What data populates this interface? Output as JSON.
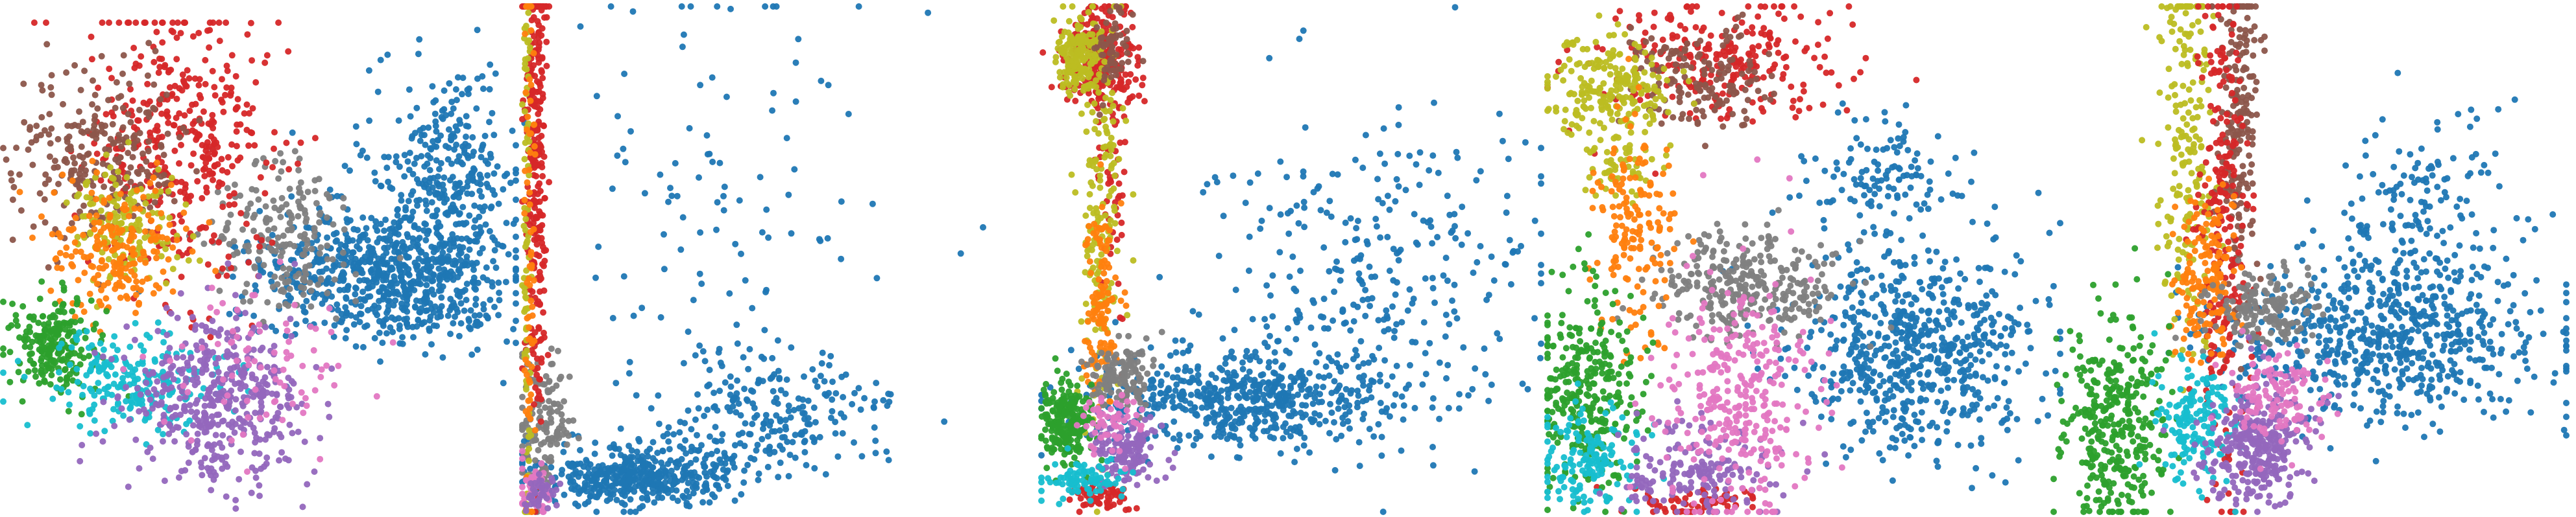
{
  "figure": {
    "background": "#ffffff",
    "axes_visible": false,
    "point_opacity": 0.95
  },
  "palette": {
    "blue": "#1f77b4",
    "orange": "#ff7f0e",
    "green": "#2ca02c",
    "red": "#d62728",
    "purple": "#9467bd",
    "brown": "#8c564b",
    "pink": "#e377c2",
    "gray": "#7f7f7f",
    "olive": "#bcbd22",
    "cyan": "#17becf"
  },
  "chart_data": [
    {
      "type": "scatter",
      "title": "",
      "xlim": [
        0,
        1
      ],
      "ylim": [
        0,
        1
      ],
      "grid": false,
      "legend": "none",
      "series": [
        {
          "color": "blue",
          "clusters": [
            {
              "cx": 0.75,
              "cy": 0.52,
              "sx": 0.12,
              "sy": 0.07,
              "n": 700
            },
            {
              "cx": 0.86,
              "cy": 0.33,
              "sx": 0.07,
              "sy": 0.12,
              "n": 350
            }
          ]
        },
        {
          "color": "gray",
          "clusters": [
            {
              "cx": 0.55,
              "cy": 0.45,
              "sx": 0.07,
              "sy": 0.08,
              "n": 200
            }
          ]
        },
        {
          "color": "red",
          "clusters": [
            {
              "cx": 0.35,
              "cy": 0.25,
              "sx": 0.09,
              "sy": 0.15,
              "n": 400
            }
          ]
        },
        {
          "color": "brown",
          "clusters": [
            {
              "cx": 0.18,
              "cy": 0.28,
              "sx": 0.08,
              "sy": 0.09,
              "n": 250
            }
          ]
        },
        {
          "color": "olive",
          "clusters": [
            {
              "cx": 0.24,
              "cy": 0.42,
              "sx": 0.05,
              "sy": 0.06,
              "n": 150
            }
          ]
        },
        {
          "color": "orange",
          "clusters": [
            {
              "cx": 0.22,
              "cy": 0.47,
              "sx": 0.07,
              "sy": 0.07,
              "n": 200
            }
          ]
        },
        {
          "color": "green",
          "clusters": [
            {
              "cx": 0.1,
              "cy": 0.66,
              "sx": 0.04,
              "sy": 0.05,
              "n": 220
            }
          ]
        },
        {
          "color": "cyan",
          "clusters": [
            {
              "cx": 0.25,
              "cy": 0.74,
              "sx": 0.1,
              "sy": 0.05,
              "n": 220
            }
          ]
        },
        {
          "color": "purple",
          "clusters": [
            {
              "cx": 0.42,
              "cy": 0.77,
              "sx": 0.09,
              "sy": 0.08,
              "n": 450
            }
          ]
        },
        {
          "color": "pink",
          "clusters": [
            {
              "cx": 0.5,
              "cy": 0.7,
              "sx": 0.1,
              "sy": 0.08,
              "n": 80
            }
          ]
        }
      ]
    },
    {
      "type": "scatter",
      "title": "",
      "xlim": [
        0,
        1
      ],
      "ylim": [
        0,
        1
      ],
      "grid": false,
      "legend": "none",
      "series": [
        {
          "color": "blue",
          "clusters": [
            {
              "cx": 0.25,
              "cy": 0.93,
              "sx": 0.1,
              "sy": 0.03,
              "n": 450
            },
            {
              "cx": 0.55,
              "cy": 0.8,
              "sx": 0.12,
              "sy": 0.06,
              "n": 220
            },
            {
              "cx": 0.42,
              "cy": 0.35,
              "sx": 0.18,
              "sy": 0.25,
              "n": 110
            }
          ]
        },
        {
          "color": "gray",
          "clusters": [
            {
              "cx": 0.05,
              "cy": 0.82,
              "sx": 0.03,
              "sy": 0.07,
              "n": 130
            }
          ]
        },
        {
          "color": "red",
          "clusters": [
            {
              "cx": 0.03,
              "cy": 0.3,
              "sx": 0.012,
              "sy": 0.26,
              "n": 300
            }
          ]
        },
        {
          "color": "olive",
          "clusters": [
            {
              "cx": 0.01,
              "cy": 0.45,
              "sx": 0.004,
              "sy": 0.35,
              "n": 90
            }
          ]
        },
        {
          "color": "orange",
          "clusters": [
            {
              "cx": 0.015,
              "cy": 0.52,
              "sx": 0.006,
              "sy": 0.32,
              "n": 70
            }
          ]
        },
        {
          "color": "pink",
          "clusters": [
            {
              "cx": 0.03,
              "cy": 0.95,
              "sx": 0.02,
              "sy": 0.03,
              "n": 50
            }
          ]
        },
        {
          "color": "purple",
          "clusters": [
            {
              "cx": 0.04,
              "cy": 0.96,
              "sx": 0.02,
              "sy": 0.02,
              "n": 40
            }
          ]
        }
      ]
    },
    {
      "type": "scatter",
      "title": "",
      "xlim": [
        0,
        1
      ],
      "ylim": [
        0,
        1
      ],
      "grid": false,
      "legend": "none",
      "series": [
        {
          "color": "blue",
          "clusters": [
            {
              "cx": 0.4,
              "cy": 0.78,
              "sx": 0.14,
              "sy": 0.05,
              "n": 550
            },
            {
              "cx": 0.65,
              "cy": 0.55,
              "sx": 0.18,
              "sy": 0.16,
              "n": 320
            }
          ]
        },
        {
          "color": "red",
          "clusters": [
            {
              "cx": 0.12,
              "cy": 0.1,
              "sx": 0.04,
              "sy": 0.05,
              "n": 250
            },
            {
              "cx": 0.14,
              "cy": 0.3,
              "sx": 0.015,
              "sy": 0.18,
              "n": 60
            },
            {
              "cx": 0.12,
              "cy": 0.97,
              "sx": 0.03,
              "sy": 0.015,
              "n": 60
            }
          ]
        },
        {
          "color": "olive",
          "clusters": [
            {
              "cx": 0.08,
              "cy": 0.1,
              "sx": 0.025,
              "sy": 0.04,
              "n": 180
            },
            {
              "cx": 0.12,
              "cy": 0.4,
              "sx": 0.02,
              "sy": 0.2,
              "n": 160
            }
          ]
        },
        {
          "color": "brown",
          "clusters": [
            {
              "cx": 0.14,
              "cy": 0.08,
              "sx": 0.02,
              "sy": 0.04,
              "n": 60
            }
          ]
        },
        {
          "color": "orange",
          "clusters": [
            {
              "cx": 0.12,
              "cy": 0.6,
              "sx": 0.015,
              "sy": 0.1,
              "n": 120
            }
          ]
        },
        {
          "color": "gray",
          "clusters": [
            {
              "cx": 0.16,
              "cy": 0.73,
              "sx": 0.03,
              "sy": 0.03,
              "n": 140
            }
          ]
        },
        {
          "color": "green",
          "clusters": [
            {
              "cx": 0.05,
              "cy": 0.82,
              "sx": 0.025,
              "sy": 0.04,
              "n": 220
            }
          ]
        },
        {
          "color": "purple",
          "clusters": [
            {
              "cx": 0.17,
              "cy": 0.88,
              "sx": 0.03,
              "sy": 0.03,
              "n": 140
            }
          ]
        },
        {
          "color": "cyan",
          "clusters": [
            {
              "cx": 0.09,
              "cy": 0.94,
              "sx": 0.04,
              "sy": 0.02,
              "n": 90
            }
          ]
        },
        {
          "color": "pink",
          "clusters": [
            {
              "cx": 0.14,
              "cy": 0.82,
              "sx": 0.03,
              "sy": 0.03,
              "n": 60
            }
          ]
        }
      ]
    },
    {
      "type": "scatter",
      "title": "",
      "xlim": [
        0,
        1
      ],
      "ylim": [
        0,
        1
      ],
      "grid": false,
      "legend": "none",
      "series": [
        {
          "color": "blue",
          "clusters": [
            {
              "cx": 0.73,
              "cy": 0.68,
              "sx": 0.12,
              "sy": 0.1,
              "n": 650
            },
            {
              "cx": 0.65,
              "cy": 0.34,
              "sx": 0.08,
              "sy": 0.06,
              "n": 120
            }
          ]
        },
        {
          "color": "gray",
          "clusters": [
            {
              "cx": 0.38,
              "cy": 0.55,
              "sx": 0.09,
              "sy": 0.05,
              "n": 300
            }
          ]
        },
        {
          "color": "red",
          "clusters": [
            {
              "cx": 0.35,
              "cy": 0.1,
              "sx": 0.12,
              "sy": 0.06,
              "n": 250
            },
            {
              "cx": 0.3,
              "cy": 0.98,
              "sx": 0.07,
              "sy": 0.015,
              "n": 70
            }
          ]
        },
        {
          "color": "brown",
          "clusters": [
            {
              "cx": 0.3,
              "cy": 0.14,
              "sx": 0.07,
              "sy": 0.05,
              "n": 150
            }
          ]
        },
        {
          "color": "olive",
          "clusters": [
            {
              "cx": 0.12,
              "cy": 0.17,
              "sx": 0.06,
              "sy": 0.05,
              "n": 220
            },
            {
              "cx": 0.15,
              "cy": 0.32,
              "sx": 0.04,
              "sy": 0.03,
              "n": 50
            }
          ]
        },
        {
          "color": "orange",
          "clusters": [
            {
              "cx": 0.17,
              "cy": 0.44,
              "sx": 0.04,
              "sy": 0.12,
              "n": 160
            }
          ]
        },
        {
          "color": "green",
          "clusters": [
            {
              "cx": 0.08,
              "cy": 0.76,
              "sx": 0.05,
              "sy": 0.1,
              "n": 320
            }
          ]
        },
        {
          "color": "cyan",
          "clusters": [
            {
              "cx": 0.08,
              "cy": 0.9,
              "sx": 0.05,
              "sy": 0.05,
              "n": 150
            }
          ]
        },
        {
          "color": "purple",
          "clusters": [
            {
              "cx": 0.3,
              "cy": 0.92,
              "sx": 0.08,
              "sy": 0.05,
              "n": 180
            }
          ]
        },
        {
          "color": "pink",
          "clusters": [
            {
              "cx": 0.38,
              "cy": 0.78,
              "sx": 0.07,
              "sy": 0.12,
              "n": 320
            }
          ]
        }
      ]
    },
    {
      "type": "scatter",
      "title": "",
      "xlim": [
        0,
        1
      ],
      "ylim": [
        0,
        1
      ],
      "grid": false,
      "legend": "none",
      "series": [
        {
          "color": "blue",
          "clusters": [
            {
              "cx": 0.65,
              "cy": 0.66,
              "sx": 0.16,
              "sy": 0.08,
              "n": 600
            },
            {
              "cx": 0.72,
              "cy": 0.45,
              "sx": 0.1,
              "sy": 0.12,
              "n": 200
            }
          ]
        },
        {
          "color": "olive",
          "clusters": [
            {
              "cx": 0.26,
              "cy": 0.25,
              "sx": 0.025,
              "sy": 0.2,
              "n": 200
            }
          ]
        },
        {
          "color": "brown",
          "clusters": [
            {
              "cx": 0.36,
              "cy": 0.22,
              "sx": 0.02,
              "sy": 0.18,
              "n": 200
            }
          ]
        },
        {
          "color": "red",
          "clusters": [
            {
              "cx": 0.33,
              "cy": 0.45,
              "sx": 0.025,
              "sy": 0.25,
              "n": 250
            }
          ]
        },
        {
          "color": "orange",
          "clusters": [
            {
              "cx": 0.3,
              "cy": 0.55,
              "sx": 0.03,
              "sy": 0.08,
              "n": 160
            }
          ]
        },
        {
          "color": "gray",
          "clusters": [
            {
              "cx": 0.42,
              "cy": 0.6,
              "sx": 0.05,
              "sy": 0.04,
              "n": 160
            }
          ]
        },
        {
          "color": "green",
          "clusters": [
            {
              "cx": 0.12,
              "cy": 0.82,
              "sx": 0.05,
              "sy": 0.11,
              "n": 350
            }
          ]
        },
        {
          "color": "cyan",
          "clusters": [
            {
              "cx": 0.27,
              "cy": 0.82,
              "sx": 0.04,
              "sy": 0.06,
              "n": 160
            }
          ]
        },
        {
          "color": "purple",
          "clusters": [
            {
              "cx": 0.4,
              "cy": 0.86,
              "sx": 0.05,
              "sy": 0.06,
              "n": 320
            }
          ]
        },
        {
          "color": "pink",
          "clusters": [
            {
              "cx": 0.44,
              "cy": 0.77,
              "sx": 0.05,
              "sy": 0.05,
              "n": 120
            }
          ]
        }
      ]
    }
  ]
}
